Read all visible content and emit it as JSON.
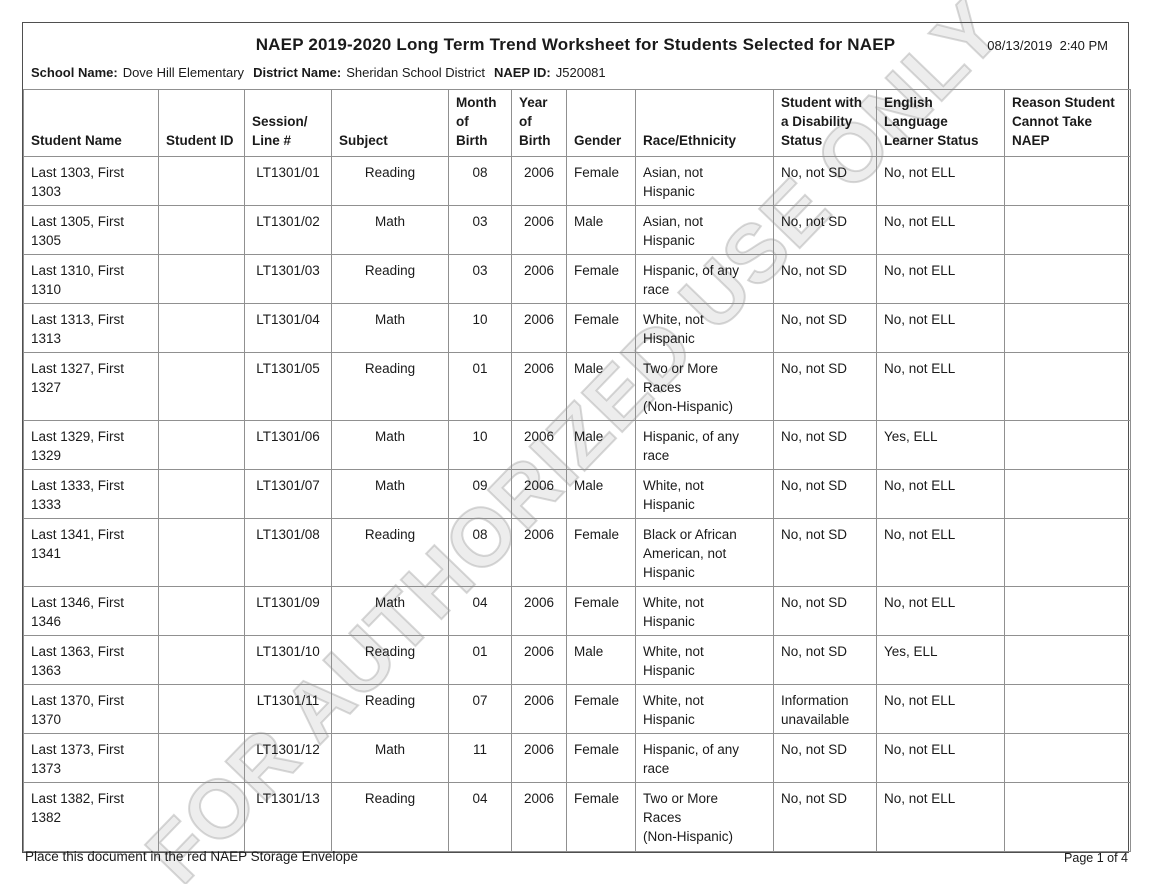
{
  "header": {
    "title": "NAEP 2019-2020 Long Term Trend Worksheet for Students Selected for NAEP",
    "timestamp": "08/13/2019  2:40 PM",
    "school_label": "School Name:",
    "school_name": "Dove Hill Elementary",
    "district_label": "District Name:",
    "district_name": "Sheridan School District",
    "naep_id_label": "NAEP ID:",
    "naep_id": "J520081"
  },
  "watermark": "FOR AUTHORIZED USE ONLY",
  "colors": {
    "text": "#1a1a1a",
    "grid_line": "#909090",
    "frame_border": "#4f4f4f",
    "watermark": "#c8c8c8",
    "background": "#ffffff"
  },
  "table": {
    "columns": [
      "Student Name",
      "Student ID",
      "Session/\nLine #",
      "Subject",
      "Month\nof\nBirth",
      "Year\nof\nBirth",
      "Gender",
      "Race/Ethnicity",
      "Student with\na Disability\nStatus",
      "English\nLanguage\nLearner Status",
      "Reason Student\nCannot Take\nNAEP"
    ],
    "rows": [
      [
        "Last 1303, First\n1303",
        "",
        "LT1301/01",
        "Reading",
        "08",
        "2006",
        "Female",
        "Asian, not\nHispanic",
        "No, not SD",
        "No, not ELL",
        ""
      ],
      [
        "Last 1305, First\n1305",
        "",
        "LT1301/02",
        "Math",
        "03",
        "2006",
        "Male",
        "Asian, not\nHispanic",
        "No, not SD",
        "No, not ELL",
        ""
      ],
      [
        "Last 1310, First\n1310",
        "",
        "LT1301/03",
        "Reading",
        "03",
        "2006",
        "Female",
        "Hispanic, of any\nrace",
        "No, not SD",
        "No, not ELL",
        ""
      ],
      [
        "Last 1313, First\n1313",
        "",
        "LT1301/04",
        "Math",
        "10",
        "2006",
        "Female",
        "White, not\nHispanic",
        "No, not SD",
        "No, not ELL",
        ""
      ],
      [
        "Last 1327, First\n1327",
        "",
        "LT1301/05",
        "Reading",
        "01",
        "2006",
        "Male",
        "Two or More\nRaces\n(Non-Hispanic)",
        "No, not SD",
        "No, not ELL",
        ""
      ],
      [
        "Last 1329, First\n1329",
        "",
        "LT1301/06",
        "Math",
        "10",
        "2006",
        "Male",
        "Hispanic, of any\nrace",
        "No, not SD",
        "Yes, ELL",
        ""
      ],
      [
        "Last 1333, First\n1333",
        "",
        "LT1301/07",
        "Math",
        "09",
        "2006",
        "Male",
        "White, not\nHispanic",
        "No, not SD",
        "No, not ELL",
        ""
      ],
      [
        "Last 1341, First\n1341",
        "",
        "LT1301/08",
        "Reading",
        "08",
        "2006",
        "Female",
        "Black or African\nAmerican, not\nHispanic",
        "No, not SD",
        "No, not ELL",
        ""
      ],
      [
        "Last 1346, First\n1346",
        "",
        "LT1301/09",
        "Math",
        "04",
        "2006",
        "Female",
        "White, not\nHispanic",
        "No, not SD",
        "No, not ELL",
        ""
      ],
      [
        "Last 1363, First\n1363",
        "",
        "LT1301/10",
        "Reading",
        "01",
        "2006",
        "Male",
        "White, not\nHispanic",
        "No, not SD",
        "Yes, ELL",
        ""
      ],
      [
        "Last 1370, First\n1370",
        "",
        "LT1301/11",
        "Reading",
        "07",
        "2006",
        "Female",
        "White, not\nHispanic",
        "Information\nunavailable",
        "No, not ELL",
        ""
      ],
      [
        "Last 1373, First\n1373",
        "",
        "LT1301/12",
        "Math",
        "11",
        "2006",
        "Female",
        "Hispanic, of any\nrace",
        "No, not SD",
        "No, not ELL",
        ""
      ],
      [
        "Last 1382, First\n1382",
        "",
        "LT1301/13",
        "Reading",
        "04",
        "2006",
        "Female",
        "Two or More\nRaces\n(Non-Hispanic)",
        "No, not SD",
        "No, not ELL",
        ""
      ]
    ]
  },
  "footer": {
    "instruction": "Place this document in the red NAEP Storage Envelope",
    "page": "Page 1 of 4"
  }
}
